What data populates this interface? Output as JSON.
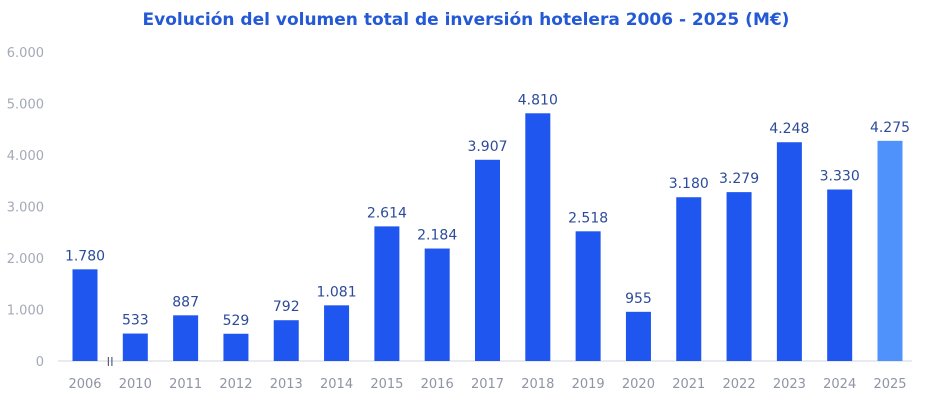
{
  "chart_data": {
    "type": "bar",
    "title": "Evolución del volumen total de inversión hotelera 2006 - 2025 (M€)",
    "xlabel": "",
    "ylabel": "",
    "ylim": [
      0,
      6000
    ],
    "yticks": [
      0,
      1000,
      2000,
      3000,
      4000,
      5000,
      6000
    ],
    "ytick_labels": [
      "0",
      "1.000",
      "2.000",
      "3.000",
      "4.000",
      "5.000",
      "6.000"
    ],
    "grid": false,
    "axis_break_after": "2006",
    "axis_break_symbol": "II",
    "categories": [
      "2006",
      "2010",
      "2011",
      "2012",
      "2013",
      "2014",
      "2015",
      "2016",
      "2017",
      "2018",
      "2019",
      "2020",
      "2021",
      "2022",
      "2023",
      "2024",
      "2025"
    ],
    "values": [
      1780,
      533,
      887,
      529,
      792,
      1081,
      2614,
      2184,
      3907,
      4810,
      2518,
      955,
      3180,
      3279,
      4248,
      3330,
      4275
    ],
    "data_labels": [
      "1.780",
      "533",
      "887",
      "529",
      "792",
      "1.081",
      "2.614",
      "2.184",
      "3.907",
      "4.810",
      "2.518",
      "955",
      "3.180",
      "3.279",
      "4.248",
      "3.330",
      "4.275"
    ],
    "colors": {
      "bar": "#1f56ef",
      "highlight_bar": "#4f92fb",
      "highlight_category": "2025",
      "axis": "#dfe3ea"
    }
  }
}
